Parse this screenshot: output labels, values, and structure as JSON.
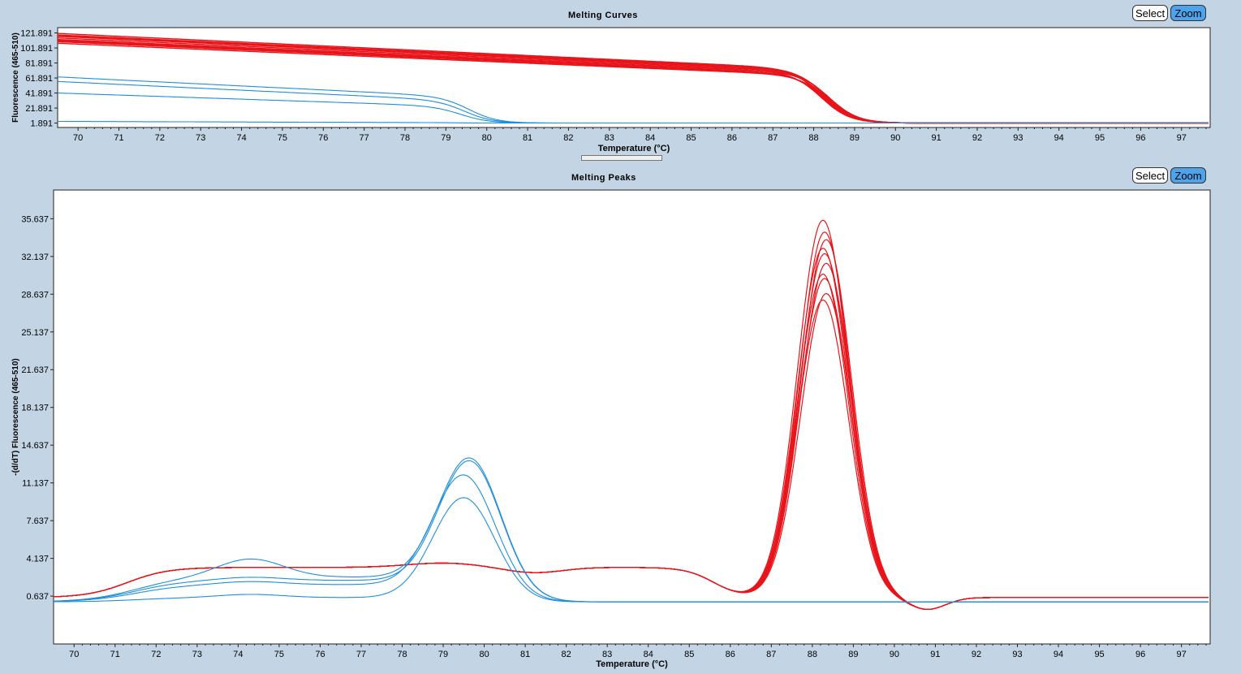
{
  "panels": {
    "curves": {
      "title": "Melting Curves",
      "select_label": "Select",
      "zoom_label": "Zoom"
    },
    "peaks": {
      "title": "Melting Peaks",
      "select_label": "Select",
      "zoom_label": "Zoom"
    }
  },
  "chart_data": [
    {
      "type": "line",
      "title": "Melting Curves",
      "xlabel": "Temperature (°C)",
      "ylabel": "Fluorescence (465-510)",
      "xlim": [
        69.5,
        97.7
      ],
      "ylim": [
        -4,
        129
      ],
      "x_ticks": [
        70,
        71,
        72,
        73,
        74,
        75,
        76,
        77,
        78,
        79,
        80,
        81,
        82,
        83,
        84,
        85,
        86,
        87,
        88,
        89,
        90,
        91,
        92,
        93,
        94,
        95,
        96,
        97
      ],
      "y_ticks": [
        1.891,
        21.891,
        41.891,
        61.891,
        81.891,
        101.891,
        121.891
      ],
      "y_tick_labels": [
        "1.891",
        "21.891",
        "41.891",
        "61.891",
        "81.891",
        "101.891",
        "121.891"
      ],
      "grid": false,
      "series_groups": [
        {
          "color": "#e8141a",
          "count": 10,
          "start_values": [
            120,
            118,
            117,
            116,
            114,
            112,
            111,
            110,
            109,
            107
          ],
          "shoulder_values": [
            75,
            74,
            73,
            72,
            71,
            70,
            69,
            68,
            67,
            66
          ],
          "tm_values": [
            88.2,
            88.3,
            88.25,
            88.35,
            88.3,
            88.2,
            88.4,
            88.25,
            88.3,
            88.35
          ],
          "baseline": 1.9
        },
        {
          "color": "#1e8fdc",
          "count": 4,
          "start_values": [
            62,
            56,
            41,
            4
          ],
          "shoulder_values": [
            38,
            33,
            25,
            2.5
          ],
          "tm_values": [
            79.6,
            79.5,
            79.4,
            79.4
          ],
          "baseline": 1.9
        }
      ]
    },
    {
      "type": "line",
      "title": "Melting Peaks",
      "xlabel": "Temperature (°C)",
      "ylabel": "-(d/dT) Fluorescence (465-510)",
      "xlim": [
        69.5,
        97.7
      ],
      "ylim": [
        -3.8,
        38.3
      ],
      "x_ticks": [
        70,
        71,
        72,
        73,
        74,
        75,
        76,
        77,
        78,
        79,
        80,
        81,
        82,
        83,
        84,
        85,
        86,
        87,
        88,
        89,
        90,
        91,
        92,
        93,
        94,
        95,
        96,
        97
      ],
      "y_ticks": [
        0.637,
        4.137,
        7.637,
        11.137,
        14.637,
        18.137,
        21.637,
        25.137,
        28.637,
        32.137,
        35.637
      ],
      "y_tick_labels": [
        "0.637",
        "4.137",
        "7.637",
        "11.137",
        "14.637",
        "18.137",
        "21.637",
        "25.137",
        "28.637",
        "32.137",
        "35.637"
      ],
      "grid": false,
      "red_peak_heights": [
        35.0,
        33.9,
        33.2,
        32.4,
        31.9,
        31.0,
        30.0,
        29.6,
        28.2,
        27.6
      ],
      "red_peak_center": 88.3,
      "blue_peak_heights": [
        13.6,
        13.3,
        11.9,
        9.7
      ],
      "blue_peak_center": 79.5,
      "blue_secondary_bump": 4.0,
      "red_plateau": 2.8,
      "dip_min": -1.1,
      "dip_center": 90.8
    }
  ]
}
